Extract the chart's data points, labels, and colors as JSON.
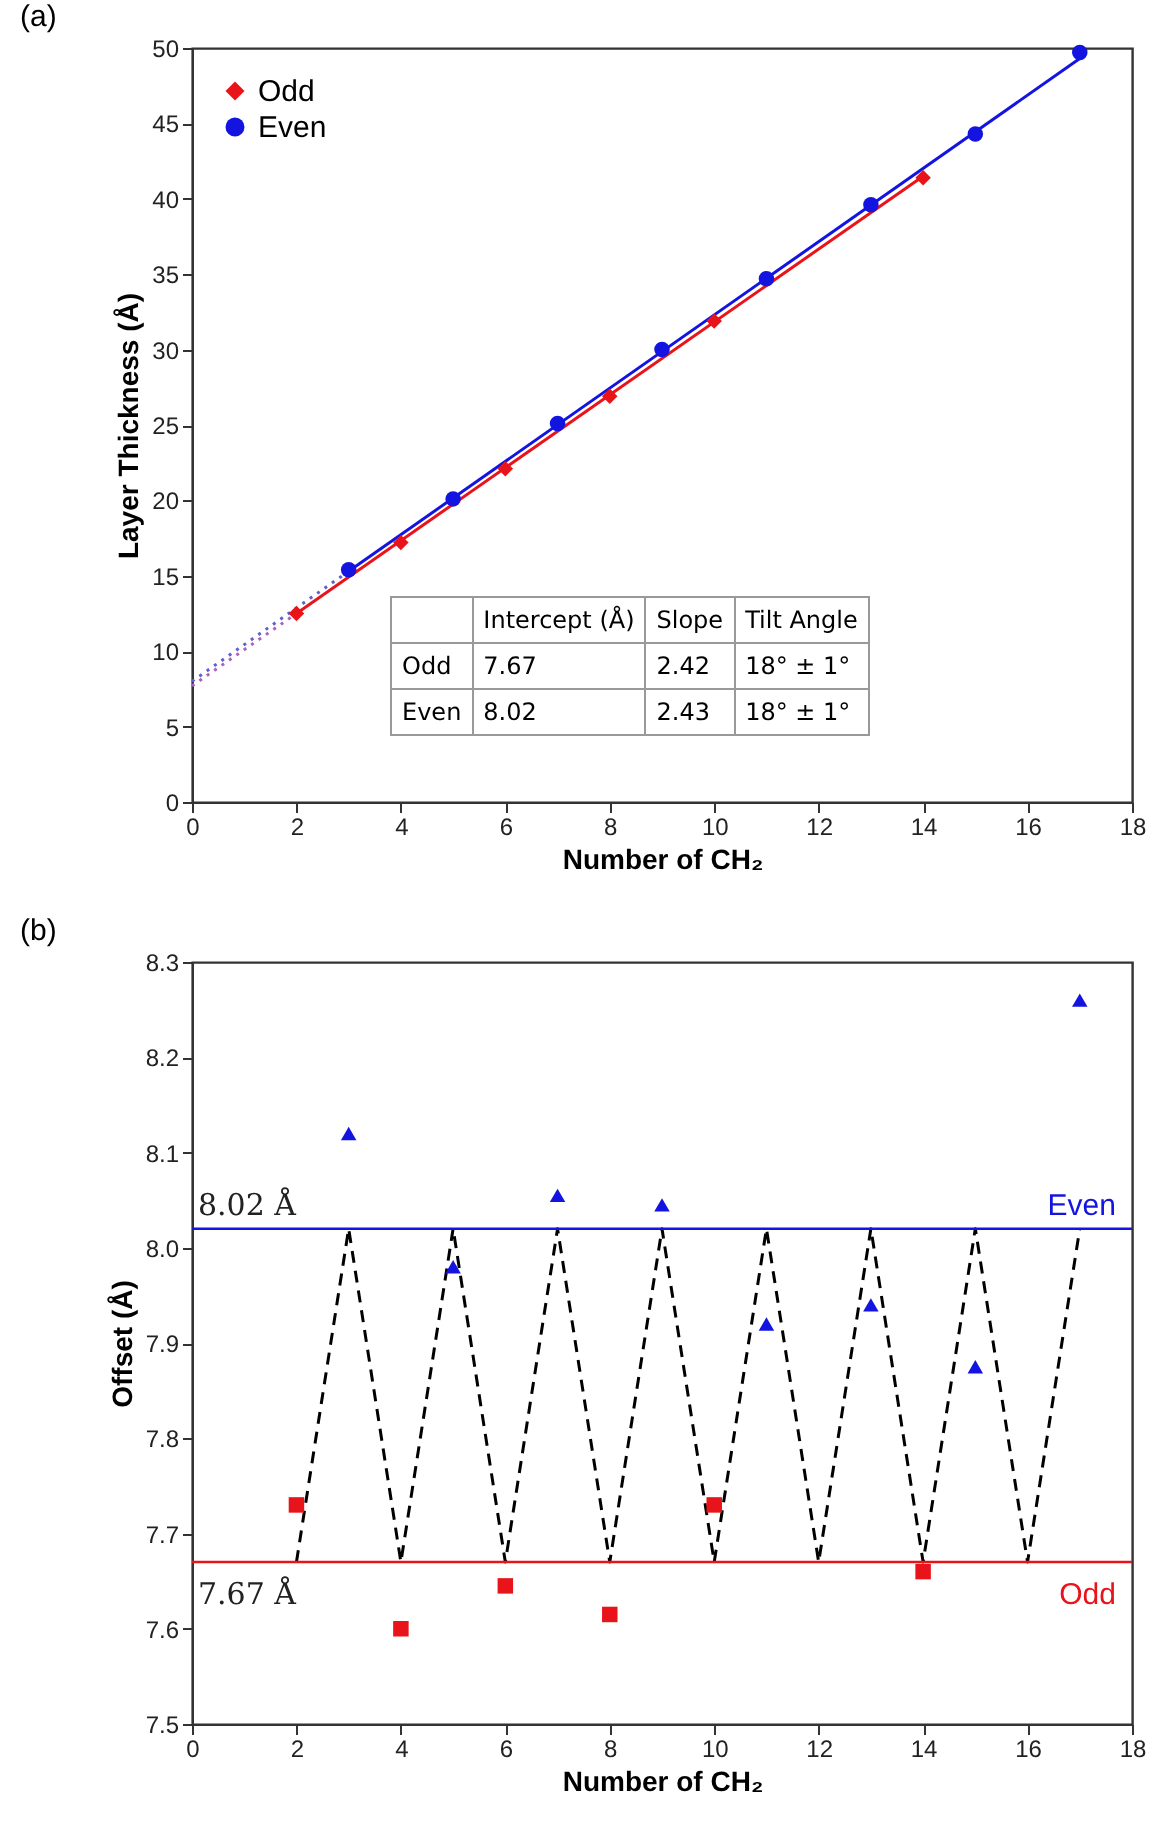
{
  "chart_data": [
    {
      "type": "scatter",
      "title": "(a)",
      "xlabel": "Number of CH₂",
      "ylabel": "Layer Thickness (Å)",
      "xlim": [
        0,
        18
      ],
      "xticks": [
        0,
        2,
        4,
        6,
        8,
        10,
        12,
        14,
        16,
        18
      ],
      "ylim": [
        0,
        50
      ],
      "yticks": [
        0,
        5,
        10,
        15,
        20,
        25,
        30,
        35,
        40,
        45,
        50
      ],
      "grid": false,
      "legend": "top left",
      "series": [
        {
          "name": "Odd",
          "marker": "diamond",
          "color": "#e8141a",
          "x": [
            2,
            4,
            6,
            8,
            10,
            14
          ],
          "values": [
            12.5,
            17.2,
            22.1,
            26.9,
            31.9,
            41.4
          ]
        },
        {
          "name": "Even",
          "marker": "circle",
          "color": "#1414e0",
          "x": [
            3,
            5,
            7,
            9,
            11,
            13,
            15,
            17
          ],
          "values": [
            15.4,
            20.1,
            25.1,
            30.0,
            34.7,
            39.6,
            44.3,
            49.7
          ]
        },
        {
          "type": "line",
          "line_style": "solid",
          "color": "#e8141a",
          "x": [
            2,
            14
          ],
          "values": [
            12.5,
            41.5
          ]
        },
        {
          "type": "line",
          "line_style": "solid",
          "color": "#1414e0",
          "x": [
            3,
            17
          ],
          "values": [
            15.3,
            49.3
          ]
        },
        {
          "type": "line",
          "line_style": "dotted",
          "color": "#b060c0",
          "x": [
            0,
            2
          ],
          "values": [
            7.7,
            12.5
          ]
        },
        {
          "type": "line",
          "line_style": "dotted",
          "color": "#6060d0",
          "x": [
            0,
            3
          ],
          "values": [
            8.0,
            15.3
          ]
        }
      ],
      "annotations": [
        "Intercept (Å)",
        "Slope",
        "Tilt Angle",
        "Odd",
        "7.67",
        "2.42",
        "18° ± 1°",
        "Even",
        "8.02",
        "2.43",
        "18° ± 1°"
      ]
    },
    {
      "type": "scatter",
      "title": "(b)",
      "xlabel": "Number of CH₂",
      "ylabel": "Offset (Å)",
      "xlim": [
        0,
        18
      ],
      "xticks": [
        0,
        2,
        4,
        6,
        8,
        10,
        12,
        14,
        16,
        18
      ],
      "ylim": [
        7.5,
        8.3
      ],
      "yticks": [
        7.5,
        7.6,
        7.7,
        7.8,
        7.9,
        {
          "value": 8,
          "label": "8.0"
        },
        8.1,
        8.2,
        8.3
      ],
      "grid": false,
      "legend": false,
      "series": [
        {
          "marker": "triangle",
          "color": "#1414e0",
          "x": [
            3,
            5,
            7,
            9,
            11,
            13,
            15,
            17
          ],
          "values": [
            8.12,
            7.98,
            8.055,
            8.045,
            7.92,
            7.94,
            7.875,
            8.26
          ]
        },
        {
          "marker": "square",
          "color": "#e8141a",
          "x": [
            2,
            4,
            6,
            8,
            10,
            14
          ],
          "values": [
            7.73,
            7.6,
            7.645,
            7.615,
            7.73,
            7.66
          ]
        },
        {
          "type": "line",
          "line_style": "dashed",
          "color": "#000000",
          "x": [
            2,
            3,
            4,
            5,
            6,
            7,
            8,
            9,
            10,
            11,
            12,
            13,
            14,
            15,
            16,
            17
          ],
          "values": [
            7.67,
            8.02,
            7.67,
            8.02,
            7.67,
            8.02,
            7.67,
            8.02,
            7.67,
            8.02,
            7.67,
            8.02,
            7.67,
            8.02,
            7.67,
            8.02
          ]
        }
      ],
      "ref_lines": [
        {
          "axis": "y",
          "value": 8.02,
          "label": "Even",
          "color": "#1414e0"
        },
        {
          "axis": "y",
          "value": 7.67,
          "label": "Odd",
          "color": "#e8141a"
        }
      ],
      "annotations": [
        {
          "text": "8.02 Å",
          "y": 8.02
        },
        {
          "text": "7.67 Å",
          "y": 7.67
        }
      ]
    }
  ]
}
